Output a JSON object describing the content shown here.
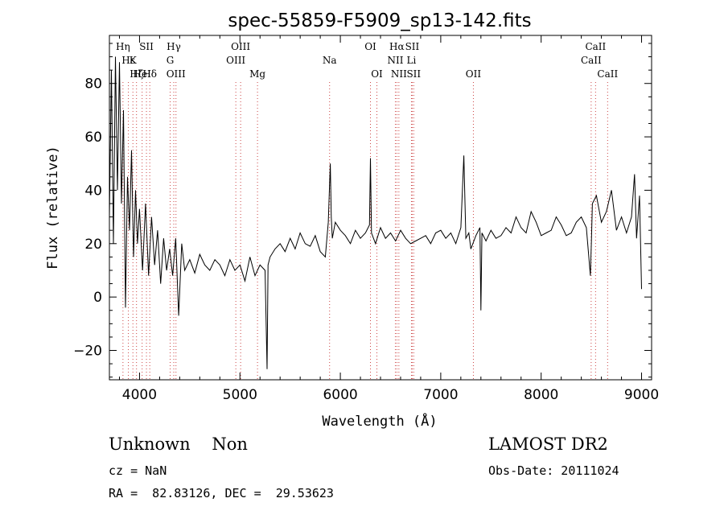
{
  "chart_data": {
    "type": "line",
    "title": "spec-55859-F5909_sp13-142.fits",
    "xlabel": "Wavelength (Å)",
    "ylabel": "Flux (relative)",
    "xlim": [
      3700,
      9100
    ],
    "ylim": [
      -31,
      98
    ],
    "xticks": [
      4000,
      5000,
      6000,
      7000,
      8000,
      9000
    ],
    "yticks": [
      -20,
      0,
      20,
      40,
      60,
      80
    ],
    "grid": false,
    "series": [
      {
        "values_x": [
          3700,
          3720,
          3740,
          3760,
          3780,
          3800,
          3820,
          3840,
          3860,
          3880,
          3900,
          3920,
          3940,
          3960,
          3980,
          4000,
          4030,
          4060,
          4090,
          4120,
          4150,
          4180,
          4210,
          4240,
          4270,
          4300,
          4330,
          4360,
          4390,
          4420,
          4450,
          4500,
          4550,
          4600,
          4650,
          4700,
          4750,
          4800,
          4850,
          4900,
          4950,
          5000,
          5050,
          5100,
          5150,
          5200,
          5250,
          5270,
          5280,
          5300,
          5350,
          5400,
          5450,
          5500,
          5550,
          5600,
          5650,
          5700,
          5750,
          5800,
          5850,
          5880,
          5900,
          5910,
          5920,
          5950,
          6000,
          6050,
          6100,
          6150,
          6200,
          6250,
          6290,
          6300,
          6310,
          6350,
          6400,
          6450,
          6500,
          6550,
          6600,
          6650,
          6700,
          6750,
          6800,
          6850,
          6900,
          6950,
          7000,
          7050,
          7100,
          7150,
          7200,
          7230,
          7250,
          7280,
          7300,
          7350,
          7390,
          7400,
          7410,
          7450,
          7500,
          7550,
          7600,
          7650,
          7700,
          7750,
          7800,
          7850,
          7900,
          7950,
          8000,
          8050,
          8100,
          8150,
          8200,
          8250,
          8300,
          8350,
          8400,
          8450,
          8490,
          8500,
          8510,
          8550,
          8600,
          8650,
          8700,
          8750,
          8800,
          8850,
          8900,
          8930,
          8950,
          8980,
          9000
        ],
        "values_y": [
          30,
          85,
          20,
          90,
          40,
          88,
          35,
          70,
          -4,
          45,
          25,
          55,
          15,
          40,
          20,
          33,
          10,
          35,
          8,
          30,
          12,
          25,
          5,
          22,
          10,
          18,
          8,
          22,
          -7,
          20,
          10,
          14,
          9,
          16,
          12,
          10,
          14,
          12,
          8,
          14,
          10,
          12,
          6,
          15,
          8,
          12,
          10,
          -27,
          12,
          15,
          18,
          20,
          17,
          22,
          18,
          24,
          20,
          19,
          23,
          17,
          15,
          28,
          50,
          30,
          22,
          28,
          25,
          23,
          20,
          25,
          22,
          24,
          27,
          52,
          24,
          20,
          26,
          22,
          24,
          21,
          25,
          22,
          20,
          21,
          22,
          23,
          20,
          24,
          25,
          22,
          24,
          20,
          26,
          53,
          22,
          24,
          18,
          23,
          26,
          -5,
          24,
          21,
          25,
          22,
          23,
          26,
          24,
          30,
          26,
          24,
          32,
          28,
          23,
          24,
          25,
          30,
          27,
          23,
          24,
          28,
          30,
          26,
          8,
          20,
          35,
          38,
          28,
          32,
          40,
          25,
          30,
          24,
          30,
          46,
          22,
          38,
          3
        ]
      }
    ],
    "line_markers": [
      {
        "label": "Hη",
        "x": 3835,
        "row": 0
      },
      {
        "label": "Hε",
        "x": 3889,
        "row": 1
      },
      {
        "label": "K",
        "x": 3934,
        "row": 1
      },
      {
        "label": "Hζ",
        "x": 3970,
        "row": 2
      },
      {
        "label": "HeI",
        "x": 4026,
        "row": 2
      },
      {
        "label": "SII",
        "x": 4069,
        "row": 0
      },
      {
        "label": "Hδ",
        "x": 4102,
        "row": 2
      },
      {
        "label": "Hγ",
        "x": 4341,
        "row": 0
      },
      {
        "label": "G",
        "x": 4305,
        "row": 1
      },
      {
        "label": "OIII",
        "x": 4363,
        "row": 2
      },
      {
        "label": "OIII",
        "x": 5007,
        "row": 0
      },
      {
        "label": "OIII",
        "x": 4959,
        "row": 1
      },
      {
        "label": "Mg",
        "x": 5175,
        "row": 2
      },
      {
        "label": "Na",
        "x": 5893,
        "row": 1
      },
      {
        "label": "OI",
        "x": 6300,
        "row": 0
      },
      {
        "label": "OI",
        "x": 6364,
        "row": 2
      },
      {
        "label": "Hα",
        "x": 6563,
        "row": 0
      },
      {
        "label": "SII",
        "x": 6716,
        "row": 0
      },
      {
        "label": "NII",
        "x": 6548,
        "row": 1
      },
      {
        "label": "Li",
        "x": 6708,
        "row": 1
      },
      {
        "label": "NII",
        "x": 6583,
        "row": 2
      },
      {
        "label": "SII",
        "x": 6731,
        "row": 2
      },
      {
        "label": "OII",
        "x": 7325,
        "row": 2
      },
      {
        "label": "CaII",
        "x": 8542,
        "row": 0
      },
      {
        "label": "CaII",
        "x": 8498,
        "row": 1
      },
      {
        "label": "CaII",
        "x": 8662,
        "row": 2
      }
    ]
  },
  "info": {
    "class_text": "Unknown    Non",
    "cz_text": "cz = NaN",
    "coords_text": "RA =  82.83126, DEC =  29.53623",
    "survey_text": "LAMOST DR2",
    "obsdate_text": "Obs-Date: 20111024"
  }
}
